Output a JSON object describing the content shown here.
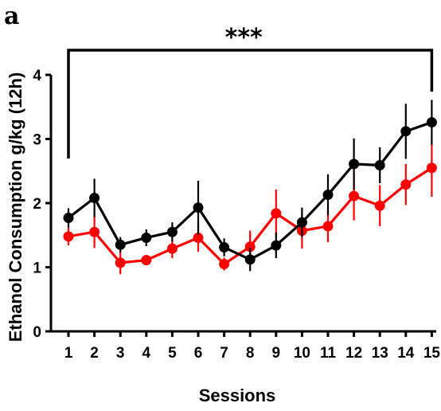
{
  "panel_label": "a",
  "chart_data": {
    "type": "line",
    "title": "",
    "xlabel": "Sessions",
    "ylabel": "Ethanol Consumption g/kg (12h)",
    "x": [
      1,
      2,
      3,
      4,
      5,
      6,
      7,
      8,
      9,
      10,
      11,
      12,
      13,
      14,
      15
    ],
    "xticks": [
      "1",
      "2",
      "3",
      "4",
      "5",
      "6",
      "7",
      "8",
      "9",
      "10",
      "11",
      "12",
      "13",
      "14",
      "15"
    ],
    "yticks": [
      "0",
      "1",
      "2",
      "3",
      "4"
    ],
    "ylim": [
      0,
      4
    ],
    "xlim": [
      0.9,
      15.1
    ],
    "grid": false,
    "legend": "none",
    "series": [
      {
        "color": "#000000",
        "values": [
          1.77,
          2.08,
          1.35,
          1.46,
          1.55,
          1.93,
          1.31,
          1.12,
          1.34,
          1.7,
          2.13,
          2.61,
          2.59,
          3.12,
          3.26
        ],
        "err_upper": [
          0.15,
          0.3,
          0.12,
          0.13,
          0.15,
          0.42,
          0.14,
          0.18,
          0.2,
          0.23,
          0.32,
          0.4,
          0.28,
          0.43,
          0.35
        ],
        "err_lower": [
          0.15,
          0.3,
          0.12,
          0.13,
          0.15,
          0.42,
          0.14,
          0.18,
          0.2,
          0.23,
          0.32,
          0.4,
          0.28,
          0.43,
          0.35
        ]
      },
      {
        "color": "#ff0000",
        "values": [
          1.48,
          1.55,
          1.07,
          1.11,
          1.29,
          1.46,
          1.05,
          1.32,
          1.84,
          1.57,
          1.64,
          2.11,
          1.96,
          2.29,
          2.55
        ],
        "err_upper": [
          0.14,
          0.25,
          0.18,
          0.08,
          0.15,
          0.22,
          0.1,
          0.25,
          0.37,
          0.28,
          0.25,
          0.38,
          0.32,
          0.32,
          0.45
        ],
        "err_lower": [
          0.14,
          0.25,
          0.18,
          0.08,
          0.15,
          0.22,
          0.1,
          0.25,
          0.37,
          0.28,
          0.25,
          0.38,
          0.32,
          0.32,
          0.45
        ]
      }
    ],
    "annotations": [
      {
        "text": "***",
        "from_x": 1,
        "to_x": 15,
        "bracket_y": 4.4
      }
    ]
  }
}
